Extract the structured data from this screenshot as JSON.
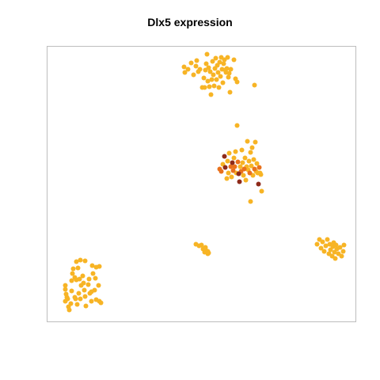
{
  "chart_data": {
    "type": "scatter",
    "title": "Dlx5 expression",
    "xlabel": "",
    "ylabel": "",
    "xlim": [
      0,
      390
    ],
    "ylim": [
      0,
      348
    ],
    "axes_visible": false,
    "grid": false,
    "legend": "none",
    "colors": {
      "low": "#F7B425",
      "mid": "#E9711C",
      "high": "#8E2A1A"
    },
    "points": [
      {
        "x": 23,
        "y": 41,
        "level": "low"
      },
      {
        "x": 23,
        "y": 46,
        "level": "low"
      },
      {
        "x": 23,
        "y": 26,
        "level": "low"
      },
      {
        "x": 24,
        "y": 35,
        "level": "low"
      },
      {
        "x": 25,
        "y": 31,
        "level": "low"
      },
      {
        "x": 26,
        "y": 29,
        "level": "low"
      },
      {
        "x": 27,
        "y": 19,
        "level": "low"
      },
      {
        "x": 28,
        "y": 15,
        "level": "low"
      },
      {
        "x": 30,
        "y": 23,
        "level": "low"
      },
      {
        "x": 31,
        "y": 39,
        "level": "low"
      },
      {
        "x": 31,
        "y": 52,
        "level": "low"
      },
      {
        "x": 32,
        "y": 61,
        "level": "low"
      },
      {
        "x": 33,
        "y": 67,
        "level": "low"
      },
      {
        "x": 35,
        "y": 31,
        "level": "low"
      },
      {
        "x": 35,
        "y": 56,
        "level": "low"
      },
      {
        "x": 36,
        "y": 29,
        "level": "low"
      },
      {
        "x": 37,
        "y": 53,
        "level": "low"
      },
      {
        "x": 37,
        "y": 76,
        "level": "low"
      },
      {
        "x": 38,
        "y": 22,
        "level": "low"
      },
      {
        "x": 39,
        "y": 68,
        "level": "low"
      },
      {
        "x": 40,
        "y": 36,
        "level": "low"
      },
      {
        "x": 41,
        "y": 54,
        "level": "low"
      },
      {
        "x": 42,
        "y": 29,
        "level": "low"
      },
      {
        "x": 42,
        "y": 78,
        "level": "low"
      },
      {
        "x": 43,
        "y": 46,
        "level": "low"
      },
      {
        "x": 45,
        "y": 58,
        "level": "low"
      },
      {
        "x": 46,
        "y": 49,
        "level": "low"
      },
      {
        "x": 47,
        "y": 40,
        "level": "low"
      },
      {
        "x": 48,
        "y": 32,
        "level": "low"
      },
      {
        "x": 48,
        "y": 77,
        "level": "low"
      },
      {
        "x": 49,
        "y": 20,
        "level": "low"
      },
      {
        "x": 52,
        "y": 47,
        "level": "low"
      },
      {
        "x": 53,
        "y": 54,
        "level": "low"
      },
      {
        "x": 54,
        "y": 36,
        "level": "low"
      },
      {
        "x": 56,
        "y": 38,
        "level": "low"
      },
      {
        "x": 56,
        "y": 26,
        "level": "low"
      },
      {
        "x": 57,
        "y": 71,
        "level": "low"
      },
      {
        "x": 58,
        "y": 61,
        "level": "low"
      },
      {
        "x": 60,
        "y": 40,
        "level": "low"
      },
      {
        "x": 61,
        "y": 55,
        "level": "low"
      },
      {
        "x": 62,
        "y": 28,
        "level": "low"
      },
      {
        "x": 62,
        "y": 69,
        "level": "low"
      },
      {
        "x": 65,
        "y": 46,
        "level": "low"
      },
      {
        "x": 66,
        "y": 26,
        "level": "low"
      },
      {
        "x": 66,
        "y": 70,
        "level": "low"
      },
      {
        "x": 68,
        "y": 24,
        "level": "low"
      },
      {
        "x": 188,
        "y": 98,
        "level": "low"
      },
      {
        "x": 192,
        "y": 96,
        "level": "low"
      },
      {
        "x": 195,
        "y": 97,
        "level": "low"
      },
      {
        "x": 197,
        "y": 92,
        "level": "low"
      },
      {
        "x": 199,
        "y": 88,
        "level": "low"
      },
      {
        "x": 200,
        "y": 94,
        "level": "low"
      },
      {
        "x": 201,
        "y": 90,
        "level": "low"
      },
      {
        "x": 203,
        "y": 86,
        "level": "low"
      },
      {
        "x": 203,
        "y": 89,
        "level": "low"
      },
      {
        "x": 204,
        "y": 87,
        "level": "low"
      },
      {
        "x": 341,
        "y": 98,
        "level": "low"
      },
      {
        "x": 344,
        "y": 104,
        "level": "low"
      },
      {
        "x": 346,
        "y": 93,
        "level": "low"
      },
      {
        "x": 348,
        "y": 101,
        "level": "low"
      },
      {
        "x": 350,
        "y": 89,
        "level": "low"
      },
      {
        "x": 352,
        "y": 96,
        "level": "low"
      },
      {
        "x": 354,
        "y": 104,
        "level": "low"
      },
      {
        "x": 356,
        "y": 86,
        "level": "low"
      },
      {
        "x": 357,
        "y": 98,
        "level": "low"
      },
      {
        "x": 358,
        "y": 91,
        "level": "low"
      },
      {
        "x": 360,
        "y": 83,
        "level": "low"
      },
      {
        "x": 361,
        "y": 95,
        "level": "low"
      },
      {
        "x": 362,
        "y": 100,
        "level": "low"
      },
      {
        "x": 363,
        "y": 88,
        "level": "low"
      },
      {
        "x": 364,
        "y": 80,
        "level": "low"
      },
      {
        "x": 365,
        "y": 97,
        "level": "low"
      },
      {
        "x": 366,
        "y": 92,
        "level": "low"
      },
      {
        "x": 368,
        "y": 86,
        "level": "low"
      },
      {
        "x": 370,
        "y": 94,
        "level": "low"
      },
      {
        "x": 372,
        "y": 83,
        "level": "low"
      },
      {
        "x": 374,
        "y": 89,
        "level": "low"
      },
      {
        "x": 375,
        "y": 97,
        "level": "low"
      },
      {
        "x": 218,
        "y": 193,
        "level": "mid"
      },
      {
        "x": 220,
        "y": 190,
        "level": "mid"
      },
      {
        "x": 222,
        "y": 199,
        "level": "low"
      },
      {
        "x": 224,
        "y": 209,
        "level": "high"
      },
      {
        "x": 225,
        "y": 195,
        "level": "high"
      },
      {
        "x": 227,
        "y": 181,
        "level": "low"
      },
      {
        "x": 228,
        "y": 203,
        "level": "low"
      },
      {
        "x": 229,
        "y": 188,
        "level": "low"
      },
      {
        "x": 230,
        "y": 213,
        "level": "low"
      },
      {
        "x": 232,
        "y": 196,
        "level": "mid"
      },
      {
        "x": 233,
        "y": 183,
        "level": "low"
      },
      {
        "x": 234,
        "y": 201,
        "level": "high"
      },
      {
        "x": 235,
        "y": 191,
        "level": "mid"
      },
      {
        "x": 236,
        "y": 207,
        "level": "low"
      },
      {
        "x": 237,
        "y": 196,
        "level": "mid"
      },
      {
        "x": 238,
        "y": 215,
        "level": "low"
      },
      {
        "x": 239,
        "y": 188,
        "level": "low"
      },
      {
        "x": 240,
        "y": 248,
        "level": "low"
      },
      {
        "x": 241,
        "y": 202,
        "level": "mid"
      },
      {
        "x": 242,
        "y": 187,
        "level": "high"
      },
      {
        "x": 243,
        "y": 177,
        "level": "high"
      },
      {
        "x": 244,
        "y": 196,
        "level": "low"
      },
      {
        "x": 245,
        "y": 190,
        "level": "mid"
      },
      {
        "x": 246,
        "y": 217,
        "level": "low"
      },
      {
        "x": 247,
        "y": 201,
        "level": "low"
      },
      {
        "x": 248,
        "y": 185,
        "level": "low"
      },
      {
        "x": 249,
        "y": 193,
        "level": "mid"
      },
      {
        "x": 250,
        "y": 207,
        "level": "low"
      },
      {
        "x": 251,
        "y": 179,
        "level": "low"
      },
      {
        "x": 252,
        "y": 196,
        "level": "low"
      },
      {
        "x": 253,
        "y": 228,
        "level": "low"
      },
      {
        "x": 254,
        "y": 192,
        "level": "low"
      },
      {
        "x": 255,
        "y": 203,
        "level": "low"
      },
      {
        "x": 256,
        "y": 188,
        "level": "mid"
      },
      {
        "x": 257,
        "y": 152,
        "level": "low"
      },
      {
        "x": 257,
        "y": 214,
        "level": "low"
      },
      {
        "x": 258,
        "y": 197,
        "level": "low"
      },
      {
        "x": 259,
        "y": 220,
        "level": "low"
      },
      {
        "x": 260,
        "y": 185,
        "level": "low"
      },
      {
        "x": 261,
        "y": 205,
        "level": "low"
      },
      {
        "x": 262,
        "y": 193,
        "level": "mid"
      },
      {
        "x": 263,
        "y": 227,
        "level": "low"
      },
      {
        "x": 264,
        "y": 190,
        "level": "low"
      },
      {
        "x": 265,
        "y": 200,
        "level": "low"
      },
      {
        "x": 266,
        "y": 188,
        "level": "low"
      },
      {
        "x": 267,
        "y": 174,
        "level": "high"
      },
      {
        "x": 268,
        "y": 195,
        "level": "mid"
      },
      {
        "x": 269,
        "y": 188,
        "level": "low"
      },
      {
        "x": 270,
        "y": 186,
        "level": "low"
      },
      {
        "x": 271,
        "y": 165,
        "level": "low"
      },
      {
        "x": 173,
        "y": 322,
        "level": "low"
      },
      {
        "x": 174,
        "y": 315,
        "level": "low"
      },
      {
        "x": 178,
        "y": 319,
        "level": "low"
      },
      {
        "x": 182,
        "y": 327,
        "level": "low"
      },
      {
        "x": 185,
        "y": 312,
        "level": "low"
      },
      {
        "x": 188,
        "y": 323,
        "level": "low"
      },
      {
        "x": 189,
        "y": 330,
        "level": "low"
      },
      {
        "x": 191,
        "y": 316,
        "level": "low"
      },
      {
        "x": 193,
        "y": 319,
        "level": "low"
      },
      {
        "x": 196,
        "y": 296,
        "level": "low"
      },
      {
        "x": 198,
        "y": 308,
        "level": "low"
      },
      {
        "x": 199,
        "y": 296,
        "level": "low"
      },
      {
        "x": 200,
        "y": 318,
        "level": "low"
      },
      {
        "x": 201,
        "y": 326,
        "level": "low"
      },
      {
        "x": 202,
        "y": 338,
        "level": "low"
      },
      {
        "x": 203,
        "y": 304,
        "level": "low"
      },
      {
        "x": 204,
        "y": 321,
        "level": "low"
      },
      {
        "x": 205,
        "y": 297,
        "level": "low"
      },
      {
        "x": 206,
        "y": 316,
        "level": "low"
      },
      {
        "x": 207,
        "y": 287,
        "level": "low"
      },
      {
        "x": 208,
        "y": 306,
        "level": "low"
      },
      {
        "x": 209,
        "y": 329,
        "level": "low"
      },
      {
        "x": 210,
        "y": 312,
        "level": "low"
      },
      {
        "x": 211,
        "y": 298,
        "level": "low"
      },
      {
        "x": 212,
        "y": 320,
        "level": "low"
      },
      {
        "x": 213,
        "y": 333,
        "level": "low"
      },
      {
        "x": 214,
        "y": 306,
        "level": "low"
      },
      {
        "x": 215,
        "y": 324,
        "level": "low"
      },
      {
        "x": 216,
        "y": 315,
        "level": "low"
      },
      {
        "x": 217,
        "y": 296,
        "level": "low"
      },
      {
        "x": 218,
        "y": 328,
        "level": "low"
      },
      {
        "x": 219,
        "y": 310,
        "level": "low"
      },
      {
        "x": 220,
        "y": 334,
        "level": "low"
      },
      {
        "x": 221,
        "y": 319,
        "level": "low"
      },
      {
        "x": 222,
        "y": 302,
        "level": "low"
      },
      {
        "x": 223,
        "y": 326,
        "level": "low"
      },
      {
        "x": 224,
        "y": 331,
        "level": "low"
      },
      {
        "x": 225,
        "y": 318,
        "level": "low"
      },
      {
        "x": 226,
        "y": 315,
        "level": "low"
      },
      {
        "x": 227,
        "y": 320,
        "level": "low"
      },
      {
        "x": 228,
        "y": 334,
        "level": "low"
      },
      {
        "x": 229,
        "y": 309,
        "level": "low"
      },
      {
        "x": 230,
        "y": 314,
        "level": "low"
      },
      {
        "x": 231,
        "y": 290,
        "level": "low"
      },
      {
        "x": 232,
        "y": 319,
        "level": "low"
      },
      {
        "x": 236,
        "y": 331,
        "level": "low"
      },
      {
        "x": 238,
        "y": 307,
        "level": "low"
      },
      {
        "x": 240,
        "y": 303,
        "level": "low"
      },
      {
        "x": 262,
        "y": 299,
        "level": "low"
      }
    ]
  }
}
